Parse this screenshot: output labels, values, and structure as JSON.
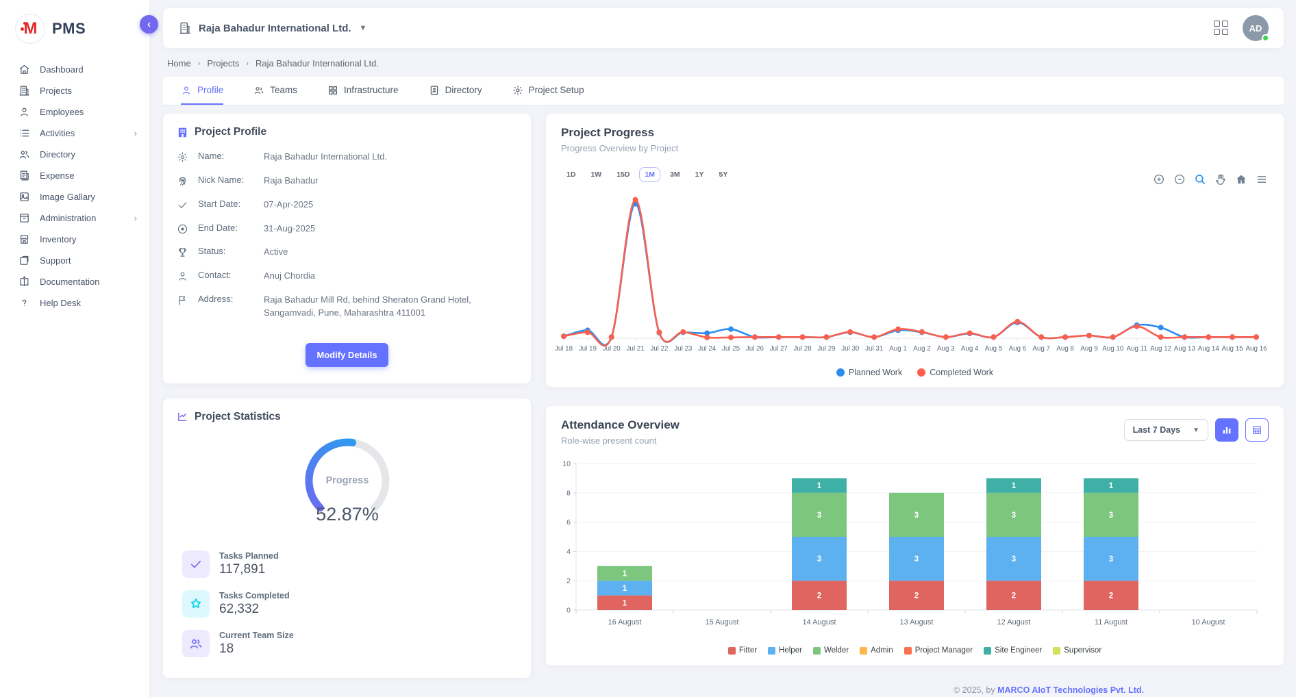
{
  "app": {
    "name": "PMS",
    "footer_prefix": "© 2025, by ",
    "footer_company": "MARCO AIoT Technologies Pvt. Ltd."
  },
  "sidebar": {
    "items": [
      {
        "label": "Dashboard",
        "icon": "home-icon",
        "has_children": false
      },
      {
        "label": "Projects",
        "icon": "building-icon",
        "has_children": false
      },
      {
        "label": "Employees",
        "icon": "user-icon",
        "has_children": false
      },
      {
        "label": "Activities",
        "icon": "list-icon",
        "has_children": true
      },
      {
        "label": "Directory",
        "icon": "users-icon",
        "has_children": false
      },
      {
        "label": "Expense",
        "icon": "receipt-icon",
        "has_children": false
      },
      {
        "label": "Image Gallary",
        "icon": "image-icon",
        "has_children": false
      },
      {
        "label": "Administration",
        "icon": "archive-icon",
        "has_children": true
      },
      {
        "label": "Inventory",
        "icon": "store-icon",
        "has_children": false
      },
      {
        "label": "Support",
        "icon": "external-icon",
        "has_children": false
      },
      {
        "label": "Documentation",
        "icon": "book-icon",
        "has_children": false
      },
      {
        "label": "Help Desk",
        "icon": "question-icon",
        "has_children": false
      }
    ]
  },
  "header": {
    "company": "Raja Bahadur International Ltd.",
    "avatar_initials": "AD"
  },
  "breadcrumb": {
    "0": "Home",
    "1": "Projects",
    "2": "Raja Bahadur International Ltd."
  },
  "tabs": [
    {
      "label": "Profile",
      "active": true
    },
    {
      "label": "Teams",
      "active": false
    },
    {
      "label": "Infrastructure",
      "active": false
    },
    {
      "label": "Directory",
      "active": false
    },
    {
      "label": "Project Setup",
      "active": false
    }
  ],
  "profile_card": {
    "title": "Project Profile",
    "fields": [
      {
        "icon": "gear-icon",
        "label": "Name:",
        "value": "Raja Bahadur International Ltd."
      },
      {
        "icon": "fingerprint-icon",
        "label": "Nick Name:",
        "value": "Raja Bahadur"
      },
      {
        "icon": "check-icon",
        "label": "Start Date:",
        "value": "07-Apr-2025"
      },
      {
        "icon": "target-icon",
        "label": "End Date:",
        "value": "31-Aug-2025"
      },
      {
        "icon": "trophy-icon",
        "label": "Status:",
        "value": "Active"
      },
      {
        "icon": "user-icon",
        "label": "Contact:",
        "value": "Anuj Chordia"
      },
      {
        "icon": "flag-icon",
        "label": "Address:",
        "value": "Raja Bahadur Mill Rd, behind Sheraton Grand Hotel, Sangamvadi, Pune, Maharashtra 411001"
      }
    ],
    "button_label": "Modify Details"
  },
  "stats_card": {
    "title": "Project Statistics",
    "gauge": {
      "label": "Progress",
      "value_text": "52.87%",
      "percent": 52.87,
      "start_color": "#7166f0",
      "end_color": "#2d9bf0",
      "track_color": "#e4e6ea"
    },
    "items": [
      {
        "icon": "check-icon",
        "tone": "purple",
        "label": "Tasks Planned",
        "value": "117,891"
      },
      {
        "icon": "star-icon",
        "tone": "cyan",
        "label": "Tasks Completed",
        "value": "62,332"
      },
      {
        "icon": "users-icon",
        "tone": "purple",
        "label": "Current Team Size",
        "value": "18"
      }
    ]
  },
  "progress_card": {
    "title": "Project Progress",
    "subtitle": "Progress Overview by Project",
    "ranges": [
      "1D",
      "1W",
      "15D",
      "1M",
      "3M",
      "1Y",
      "5Y"
    ],
    "active_range": "1M"
  },
  "attendance_card": {
    "title": "Attendance Overview",
    "subtitle": "Role-wise present count",
    "filter_value": "Last 7 Days"
  },
  "chart_data": [
    {
      "type": "line",
      "title": "Project Progress",
      "x": [
        "Jul 18",
        "Jul 19",
        "Jul 20",
        "Jul 21",
        "Jul 22",
        "Jul 23",
        "Jul 24",
        "Jul 25",
        "Jul 26",
        "Jul 27",
        "Jul 28",
        "Jul 29",
        "Jul 30",
        "Jul 31",
        "Aug 1",
        "Aug 2",
        "Aug 3",
        "Aug 4",
        "Aug 5",
        "Aug 6",
        "Aug 7",
        "Aug 8",
        "Aug 9",
        "Aug 10",
        "Aug 11",
        "Aug 12",
        "Aug 13",
        "Aug 14",
        "Aug 15",
        "Aug 16"
      ],
      "series": [
        {
          "name": "Planned Work",
          "color": "#2d8cf0",
          "values": [
            0.5,
            2,
            0.3,
            34,
            1.4,
            1.5,
            1.3,
            2.3,
            0.3,
            0.3,
            0.3,
            0.3,
            1.5,
            0.3,
            2,
            1.5,
            0.3,
            1.2,
            0.3,
            4,
            0.3,
            0.3,
            0.7,
            0.3,
            3.3,
            2.7,
            0.3,
            0.3,
            0.3,
            0.3
          ]
        },
        {
          "name": "Completed Work",
          "color": "#fa5f4f",
          "values": [
            0.5,
            1.5,
            0.3,
            35,
            1.5,
            1.6,
            0.2,
            0.2,
            0.3,
            0.3,
            0.3,
            0.3,
            1.6,
            0.3,
            2.3,
            1.6,
            0.3,
            1.3,
            0.3,
            4.2,
            0.3,
            0.3,
            0.7,
            0.3,
            3,
            0.3,
            0.3,
            0.3,
            0.3,
            0.3
          ]
        }
      ],
      "ylim": [
        0,
        36
      ],
      "legend_position": "bottom",
      "grid": false
    },
    {
      "type": "bar",
      "stacked": true,
      "title": "Attendance Overview",
      "categories": [
        "16 August",
        "15 August",
        "14 August",
        "13 August",
        "12 August",
        "11 August",
        "10 August"
      ],
      "series": [
        {
          "name": "Fitter",
          "color": "#e06560",
          "values": [
            1,
            0,
            2,
            2,
            2,
            2,
            0
          ]
        },
        {
          "name": "Helper",
          "color": "#5eb1f0",
          "values": [
            1,
            0,
            3,
            3,
            3,
            3,
            0
          ]
        },
        {
          "name": "Welder",
          "color": "#7cc67e",
          "values": [
            1,
            0,
            3,
            3,
            3,
            3,
            0
          ]
        },
        {
          "name": "Admin",
          "color": "#ffb64d",
          "values": [
            0,
            0,
            0,
            0,
            0,
            0,
            0
          ]
        },
        {
          "name": "Project Manager",
          "color": "#fb7150",
          "values": [
            0,
            0,
            0,
            0,
            0,
            0,
            0
          ]
        },
        {
          "name": "Site Engineer",
          "color": "#3fb0a5",
          "values": [
            0,
            0,
            1,
            0,
            1,
            1,
            0
          ]
        },
        {
          "name": "Supervisor",
          "color": "#d5e05b",
          "values": [
            0,
            0,
            0,
            0,
            0,
            0,
            0
          ]
        }
      ],
      "ylim": [
        0,
        10
      ],
      "yticks": [
        0,
        2,
        4,
        6,
        8,
        10
      ],
      "legend_position": "bottom",
      "grid": true
    }
  ]
}
